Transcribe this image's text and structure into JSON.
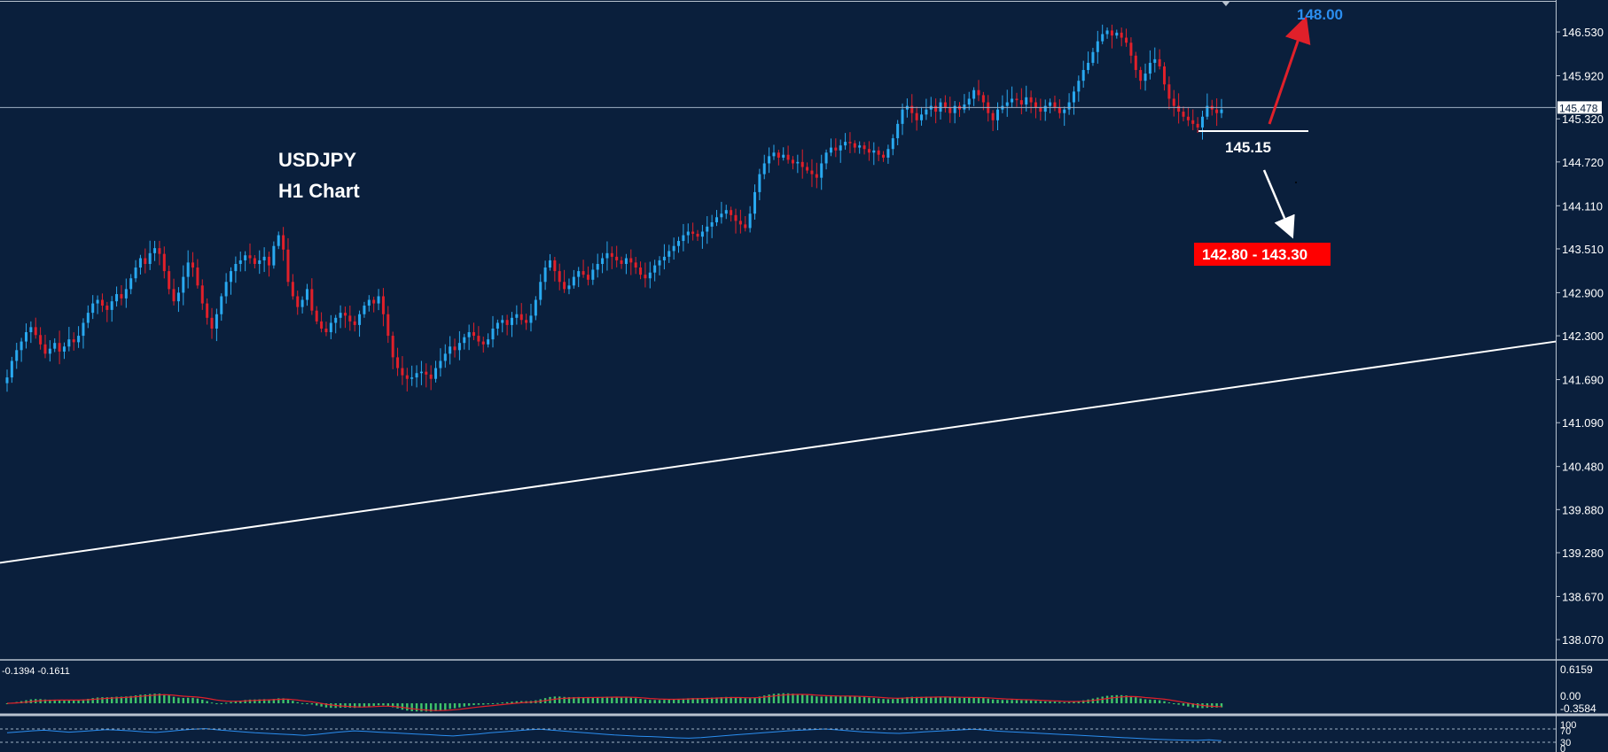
{
  "chart_data": {
    "type": "candlestick",
    "title_lines": [
      "USDJPY",
      "H1 Chart"
    ],
    "colors": {
      "background": "#0a1f3c",
      "bull": "#29a9f0",
      "bear": "#e0202a",
      "trendline": "#ffffff",
      "macd_hist": "#3fc46a",
      "macd_signal": "#e0202a",
      "rsi_line": "#2b8ef0",
      "target_up": "#2b8ef0",
      "target_down_bg": "#ff0000"
    },
    "price_axis": {
      "ticks": [
        "146.530",
        "145.920",
        "145.320",
        "144.720",
        "144.110",
        "143.510",
        "142.900",
        "142.300",
        "141.690",
        "141.090",
        "140.480",
        "139.880",
        "139.280",
        "138.670",
        "138.070"
      ],
      "range": [
        137.8,
        146.95
      ],
      "current_price": "145.478"
    },
    "candle_closes": [
      141.72,
      141.95,
      142.1,
      142.22,
      142.35,
      142.42,
      142.31,
      142.18,
      142.05,
      142.12,
      142.2,
      142.08,
      142.15,
      142.25,
      142.21,
      142.3,
      142.48,
      142.62,
      142.75,
      142.8,
      142.72,
      142.66,
      142.78,
      142.88,
      142.82,
      142.95,
      143.1,
      143.25,
      143.38,
      143.3,
      143.45,
      143.52,
      143.44,
      143.2,
      142.95,
      142.78,
      142.9,
      143.12,
      143.32,
      143.25,
      143.0,
      142.75,
      142.55,
      142.4,
      142.6,
      142.85,
      143.05,
      143.2,
      143.3,
      143.35,
      143.42,
      143.38,
      143.3,
      143.35,
      143.4,
      143.28,
      143.55,
      143.7,
      143.5,
      143.05,
      142.85,
      142.7,
      142.8,
      142.95,
      142.65,
      142.5,
      142.4,
      142.35,
      142.48,
      142.55,
      142.62,
      142.58,
      142.5,
      142.45,
      142.6,
      142.72,
      142.8,
      142.75,
      142.85,
      142.6,
      142.3,
      142.0,
      141.85,
      141.75,
      141.7,
      141.72,
      141.78,
      141.8,
      141.76,
      141.7,
      141.85,
      141.95,
      142.05,
      142.15,
      142.1,
      142.2,
      142.28,
      142.35,
      142.3,
      142.22,
      142.18,
      142.25,
      142.4,
      142.48,
      142.52,
      142.45,
      142.55,
      142.6,
      142.52,
      142.48,
      142.58,
      142.8,
      143.05,
      143.25,
      143.35,
      143.2,
      143.05,
      142.95,
      143.0,
      143.12,
      143.2,
      143.15,
      143.08,
      143.22,
      143.3,
      143.38,
      143.45,
      143.4,
      143.35,
      143.3,
      143.38,
      143.32,
      143.25,
      143.15,
      143.1,
      143.18,
      143.28,
      143.35,
      143.4,
      143.48,
      143.55,
      143.62,
      143.7,
      143.75,
      143.72,
      143.68,
      143.75,
      143.82,
      143.88,
      143.95,
      144.0,
      144.05,
      143.98,
      143.9,
      143.85,
      143.8,
      144.0,
      144.3,
      144.55,
      144.7,
      144.8,
      144.85,
      144.78,
      144.82,
      144.75,
      144.7,
      144.72,
      144.65,
      144.6,
      144.55,
      144.5,
      144.7,
      144.85,
      144.92,
      144.88,
      144.95,
      145.0,
      144.98,
      144.92,
      144.95,
      144.9,
      144.85,
      144.88,
      144.82,
      144.78,
      144.9,
      145.05,
      145.25,
      145.45,
      145.5,
      145.4,
      145.3,
      145.38,
      145.45,
      145.5,
      145.42,
      145.55,
      145.48,
      145.4,
      145.5,
      145.45,
      145.52,
      145.6,
      145.72,
      145.65,
      145.55,
      145.4,
      145.3,
      145.45,
      145.5,
      145.55,
      145.6,
      145.58,
      145.52,
      145.62,
      145.55,
      145.48,
      145.42,
      145.5,
      145.55,
      145.48,
      145.4,
      145.45,
      145.55,
      145.7,
      145.85,
      146.0,
      146.1,
      146.25,
      146.4,
      146.5,
      146.55,
      146.48,
      146.52,
      146.45,
      146.38,
      146.2,
      146.0,
      145.85,
      145.95,
      146.1,
      146.15,
      146.05,
      145.8,
      145.6,
      145.5,
      145.42,
      145.35,
      145.3,
      145.25,
      145.2,
      145.35,
      145.5,
      145.45,
      145.4,
      145.45
    ],
    "trendline": {
      "from": [
        0,
        139.14
      ],
      "to": [
        1,
        142.22
      ]
    },
    "support": {
      "label": "145.15",
      "value": 145.15
    },
    "target_up": {
      "label": "148.00"
    },
    "target_down": {
      "label": "142.80 - 143.30"
    },
    "macd": {
      "legend": "-0.1394 -0.1611",
      "ticks": [
        "0.6159",
        "0.00",
        "-0.3584"
      ],
      "range": [
        -0.5,
        0.75
      ]
    },
    "rsi": {
      "ticks": [
        "100",
        "70",
        "30",
        "0"
      ],
      "range": [
        0,
        100
      ],
      "values": [
        52,
        55,
        58,
        60,
        57,
        54,
        56,
        59,
        62,
        60,
        58,
        55,
        53,
        56,
        60,
        63,
        65,
        61,
        58,
        55,
        52,
        50,
        48,
        46,
        44,
        47,
        51,
        55,
        58,
        56,
        54,
        52,
        50,
        48,
        46,
        44,
        42,
        45,
        48,
        52,
        55,
        58,
        61,
        63,
        60,
        57,
        54,
        51,
        48,
        45,
        43,
        41,
        40,
        38,
        36,
        35,
        37,
        40,
        43,
        46,
        49,
        52,
        55,
        58,
        60,
        62,
        64,
        61,
        58,
        55,
        53,
        51,
        50,
        52,
        55,
        57,
        59,
        61,
        63,
        60,
        57,
        55,
        53,
        51,
        49,
        47,
        45,
        43,
        41,
        39,
        37,
        35,
        33,
        31,
        30,
        29,
        28,
        30,
        27
      ]
    }
  }
}
